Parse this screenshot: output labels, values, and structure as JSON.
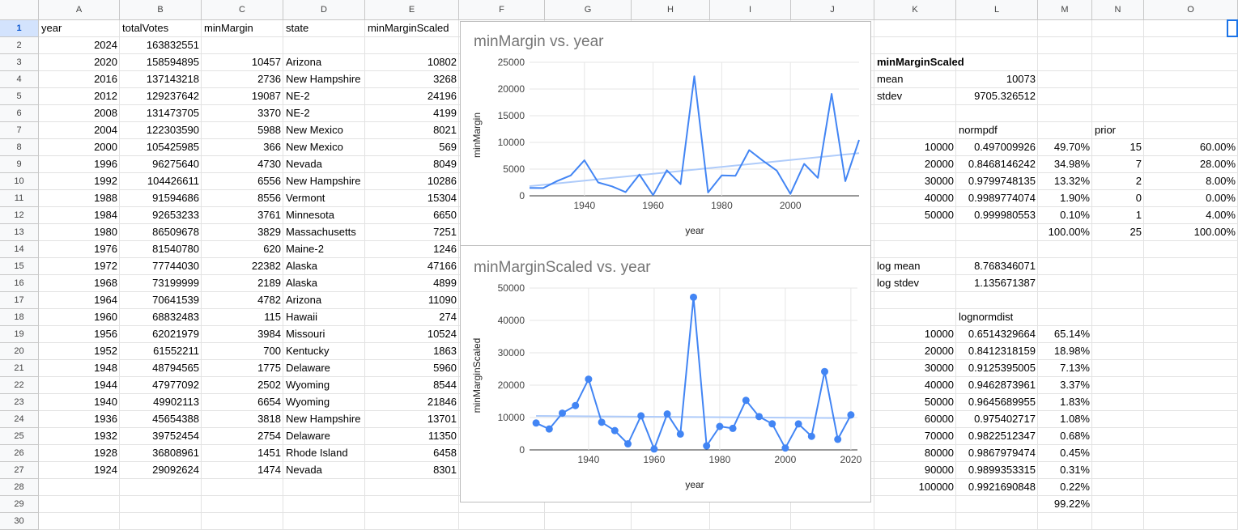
{
  "columns": [
    "A",
    "B",
    "C",
    "D",
    "E",
    "F",
    "G",
    "H",
    "I",
    "J",
    "K",
    "L",
    "M",
    "N",
    "O"
  ],
  "rows": [
    "1",
    "2",
    "3",
    "4",
    "5",
    "6",
    "7",
    "8",
    "9",
    "10",
    "11",
    "12",
    "13",
    "14",
    "15",
    "16",
    "17",
    "18",
    "19",
    "20",
    "21",
    "22",
    "23",
    "24",
    "25",
    "26",
    "27",
    "28",
    "29",
    "30"
  ],
  "table": {
    "headers": [
      "year",
      "totalVotes",
      "minMargin",
      "state",
      "minMarginScaled"
    ],
    "rows": [
      [
        "2024",
        "163832551",
        "",
        "",
        ""
      ],
      [
        "2020",
        "158594895",
        "10457",
        "Arizona",
        "10802"
      ],
      [
        "2016",
        "137143218",
        "2736",
        "New Hampshire",
        "3268"
      ],
      [
        "2012",
        "129237642",
        "19087",
        "NE-2",
        "24196"
      ],
      [
        "2008",
        "131473705",
        "3370",
        "NE-2",
        "4199"
      ],
      [
        "2004",
        "122303590",
        "5988",
        "New Mexico",
        "8021"
      ],
      [
        "2000",
        "105425985",
        "366",
        "New Mexico",
        "569"
      ],
      [
        "1996",
        "96275640",
        "4730",
        "Nevada",
        "8049"
      ],
      [
        "1992",
        "104426611",
        "6556",
        "New Hampshire",
        "10286"
      ],
      [
        "1988",
        "91594686",
        "8556",
        "Vermont",
        "15304"
      ],
      [
        "1984",
        "92653233",
        "3761",
        "Minnesota",
        "6650"
      ],
      [
        "1980",
        "86509678",
        "3829",
        "Massachusetts",
        "7251"
      ],
      [
        "1976",
        "81540780",
        "620",
        "Maine-2",
        "1246"
      ],
      [
        "1972",
        "77744030",
        "22382",
        "Alaska",
        "47166"
      ],
      [
        "1968",
        "73199999",
        "2189",
        "Alaska",
        "4899"
      ],
      [
        "1964",
        "70641539",
        "4782",
        "Arizona",
        "11090"
      ],
      [
        "1960",
        "68832483",
        "115",
        "Hawaii",
        "274"
      ],
      [
        "1956",
        "62021979",
        "3984",
        "Missouri",
        "10524"
      ],
      [
        "1952",
        "61552211",
        "700",
        "Kentucky",
        "1863"
      ],
      [
        "1948",
        "48794565",
        "1775",
        "Delaware",
        "5960"
      ],
      [
        "1944",
        "47977092",
        "2502",
        "Wyoming",
        "8544"
      ],
      [
        "1940",
        "49902113",
        "6654",
        "Wyoming",
        "21846"
      ],
      [
        "1936",
        "45654388",
        "3818",
        "New Hampshire",
        "13701"
      ],
      [
        "1932",
        "39752454",
        "2754",
        "Delaware",
        "11350"
      ],
      [
        "1928",
        "36808961",
        "1451",
        "Rhode Island",
        "6458"
      ],
      [
        "1924",
        "29092624",
        "1474",
        "Nevada",
        "8301"
      ]
    ]
  },
  "stats": {
    "title": "minMarginScaled",
    "mean_label": "mean",
    "mean_value": "10073",
    "stdev_label": "stdev",
    "stdev_value": "9705.326512",
    "normpdf_header": "normpdf",
    "prior_header": "prior",
    "normpdf_rows": [
      [
        "10000",
        "0.497009926",
        "49.70%",
        "15",
        "60.00%"
      ],
      [
        "20000",
        "0.8468146242",
        "34.98%",
        "7",
        "28.00%"
      ],
      [
        "30000",
        "0.9799748135",
        "13.32%",
        "2",
        "8.00%"
      ],
      [
        "40000",
        "0.9989774074",
        "1.90%",
        "0",
        "0.00%"
      ],
      [
        "50000",
        "0.999980553",
        "0.10%",
        "1",
        "4.00%"
      ]
    ],
    "normpdf_total_pct": "100.00%",
    "prior_total": "25",
    "prior_total_pct": "100.00%",
    "log_mean_label": "log mean",
    "log_mean_value": "8.768346071",
    "log_stdev_label": "log stdev",
    "log_stdev_value": "1.135671387",
    "lognorm_header": "lognormdist",
    "lognorm_rows": [
      [
        "10000",
        "0.6514329664",
        "65.14%"
      ],
      [
        "20000",
        "0.8412318159",
        "18.98%"
      ],
      [
        "30000",
        "0.9125395005",
        "7.13%"
      ],
      [
        "40000",
        "0.9462873961",
        "3.37%"
      ],
      [
        "50000",
        "0.9645689955",
        "1.83%"
      ],
      [
        "60000",
        "0.975402717",
        "1.08%"
      ],
      [
        "70000",
        "0.9822512347",
        "0.68%"
      ],
      [
        "80000",
        "0.9867979474",
        "0.45%"
      ],
      [
        "90000",
        "0.9899353315",
        "0.31%"
      ],
      [
        "100000",
        "0.9921690848",
        "0.22%"
      ]
    ],
    "lognorm_total_pct": "99.22%"
  },
  "chart_data": [
    {
      "type": "line",
      "title": "minMargin vs. year",
      "xlabel": "year",
      "ylabel": "minMargin",
      "x": [
        1924,
        1928,
        1932,
        1936,
        1940,
        1944,
        1948,
        1952,
        1956,
        1960,
        1964,
        1968,
        1972,
        1976,
        1980,
        1984,
        1988,
        1992,
        1996,
        2000,
        2004,
        2008,
        2012,
        2016,
        2020
      ],
      "series": [
        {
          "values": [
            1474,
            1451,
            2754,
            3818,
            6654,
            2502,
            1775,
            700,
            3984,
            115,
            4782,
            2189,
            22382,
            620,
            3829,
            3761,
            8556,
            6556,
            4730,
            366,
            5988,
            3370,
            19087,
            2736,
            10457
          ],
          "color": "#4285f4"
        },
        {
          "trendline": true,
          "x": [
            1924,
            2020
          ],
          "values": [
            1800,
            8000
          ],
          "color": "#aecbfa"
        }
      ],
      "xlim": [
        1924,
        2020
      ],
      "ylim": [
        0,
        25000
      ],
      "xticks": [
        1940,
        1960,
        1980,
        2000
      ],
      "yticks": [
        0,
        5000,
        10000,
        15000,
        20000,
        25000
      ],
      "grid": true
    },
    {
      "type": "line",
      "title": "minMarginScaled vs. year",
      "xlabel": "year",
      "ylabel": "minMarginScaled",
      "x": [
        1924,
        1928,
        1932,
        1936,
        1940,
        1944,
        1948,
        1952,
        1956,
        1960,
        1964,
        1968,
        1972,
        1976,
        1980,
        1984,
        1988,
        1992,
        1996,
        2000,
        2004,
        2008,
        2012,
        2016,
        2020
      ],
      "series": [
        {
          "values": [
            8301,
            6458,
            11350,
            13701,
            21846,
            8544,
            5960,
            1863,
            10524,
            274,
            11090,
            4899,
            47166,
            1246,
            7251,
            6650,
            15304,
            10286,
            8049,
            569,
            8021,
            4199,
            24196,
            3268,
            10802
          ],
          "color": "#4285f4",
          "markers": true
        },
        {
          "trendline": true,
          "x": [
            1924,
            2020
          ],
          "values": [
            10500,
            9800
          ],
          "color": "#aecbfa"
        }
      ],
      "xlim": [
        1922,
        2022
      ],
      "ylim": [
        0,
        50000
      ],
      "xticks": [
        1940,
        1960,
        1980,
        2000,
        2020
      ],
      "yticks": [
        0,
        10000,
        20000,
        30000,
        40000,
        50000
      ],
      "grid": true
    }
  ]
}
